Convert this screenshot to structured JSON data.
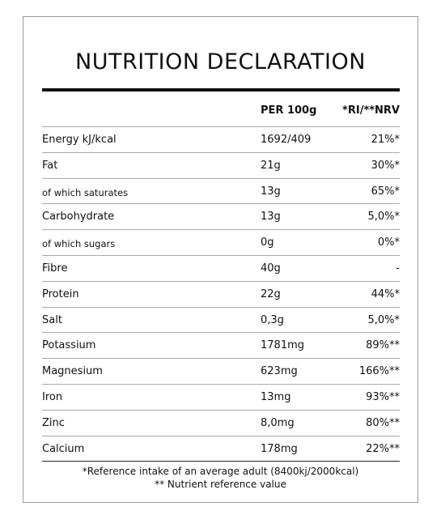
{
  "title": "NUTRITION DECLARATION",
  "header": {
    "per": "PER 100g",
    "ri": "*RI/**NRV"
  },
  "rows": [
    {
      "name": "Energy kJ/kcal",
      "value": "1692/409",
      "ri": "21%*",
      "small": false
    },
    {
      "name": "Fat",
      "value": "21g",
      "ri": "30%*",
      "small": false
    },
    {
      "name": "of which saturates",
      "value": "13g",
      "ri": "65%*",
      "small": true
    },
    {
      "name": "Carbohydrate",
      "value": "13g",
      "ri": "5,0%*",
      "small": false
    },
    {
      "name": "of which sugars",
      "value": "0g",
      "ri": "0%*",
      "small": true
    },
    {
      "name": "Fibre",
      "value": "40g",
      "ri": "-",
      "small": false
    },
    {
      "name": "Protein",
      "value": "22g",
      "ri": "44%*",
      "small": false
    },
    {
      "name": "Salt",
      "value": "0,3g",
      "ri": "5,0%*",
      "small": false
    },
    {
      "name": "Potassium",
      "value": "1781mg",
      "ri": "89%**",
      "small": false
    },
    {
      "name": "Magnesium",
      "value": "623mg",
      "ri": "166%**",
      "small": false
    },
    {
      "name": "Iron",
      "value": "13mg",
      "ri": "93%**",
      "small": false
    },
    {
      "name": "Zinc",
      "value": "8,0mg",
      "ri": "80%**",
      "small": false
    },
    {
      "name": "Calcium",
      "value": "178mg",
      "ri": "22%**",
      "small": false
    }
  ],
  "footnotes": {
    "line1": "*Reference intake of an average adult (8400kj/2000kcal)",
    "line2": "** Nutrient reference value"
  }
}
